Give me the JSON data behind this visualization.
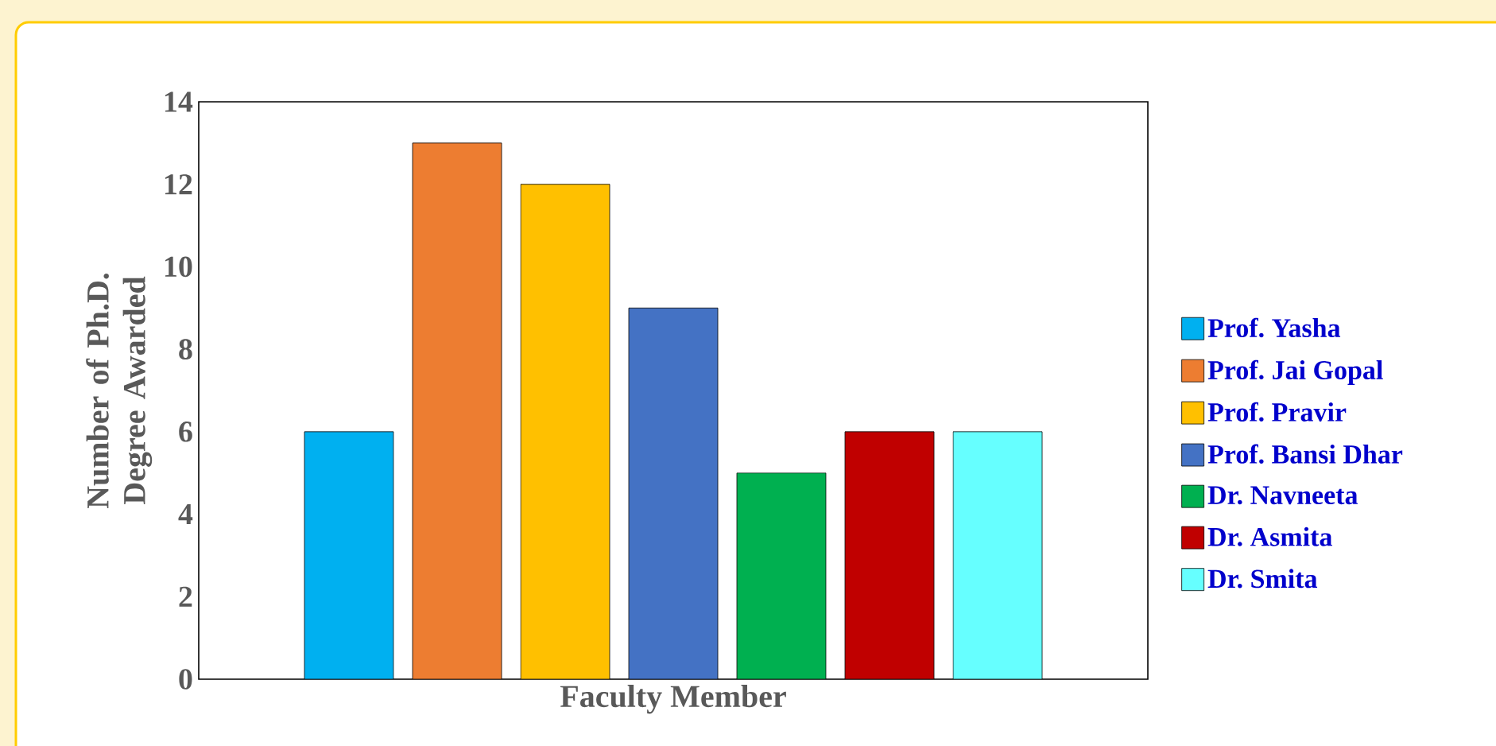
{
  "chart_data": {
    "type": "bar",
    "xlabel": "Faculty Member",
    "ylabel": "Number of Ph.D. Degree Awarded",
    "categories": [
      null
    ],
    "series": [
      {
        "name": "Prof. Yasha",
        "color": "#00b0f0",
        "values": [
          6
        ]
      },
      {
        "name": "Prof. Jai Gopal",
        "color": "#ed7d31",
        "values": [
          13
        ]
      },
      {
        "name": "Prof. Pravir",
        "color": "#ffc000",
        "values": [
          12
        ]
      },
      {
        "name": "Prof. Bansi Dhar",
        "color": "#4472c4",
        "values": [
          9
        ]
      },
      {
        "name": "Dr. Navneeta",
        "color": "#00b050",
        "values": [
          5
        ]
      },
      {
        "name": "Dr. Asmita",
        "color": "#c00000",
        "values": [
          6
        ]
      },
      {
        "name": "Dr. Smita",
        "color": "#66ffff",
        "values": [
          6
        ]
      }
    ],
    "ylim": [
      0,
      14
    ],
    "yticks": [
      0,
      2,
      4,
      6,
      8,
      10,
      12,
      14
    ],
    "legend": "right"
  }
}
